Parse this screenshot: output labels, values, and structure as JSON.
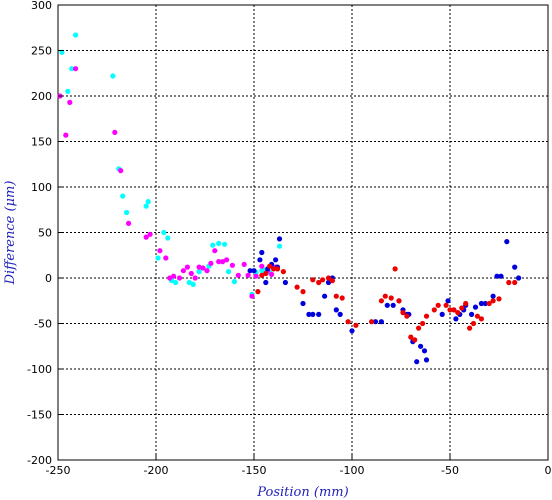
{
  "chart_data": {
    "type": "scatter",
    "xlabel": "Position (mm)",
    "ylabel": "Difference (μm)",
    "label_color": "#2222bb",
    "xlim": [
      -250,
      0
    ],
    "ylim": [
      -200,
      300
    ],
    "x_ticks": [
      "-250",
      "-200",
      "-150",
      "-100",
      "-50",
      "0"
    ],
    "y_ticks": [
      "300",
      "250",
      "200",
      "150",
      "100",
      "50",
      "0",
      "-50",
      "-100",
      "-150",
      "-200"
    ],
    "grid": true,
    "grid_style": "dashed",
    "series": [
      {
        "color": "#00ffff",
        "points": [
          [
            -248,
            248
          ],
          [
            -245,
            205
          ],
          [
            -243,
            230
          ],
          [
            -241,
            267
          ],
          [
            -222,
            222
          ],
          [
            -219,
            120
          ],
          [
            -217,
            90
          ],
          [
            -215,
            72
          ],
          [
            -205,
            79
          ],
          [
            -204,
            84
          ],
          [
            -199,
            22
          ],
          [
            -196,
            50
          ],
          [
            -194,
            44
          ],
          [
            -192,
            -3
          ],
          [
            -190,
            -5
          ],
          [
            -183,
            -5
          ],
          [
            -181,
            -7
          ],
          [
            -178,
            7
          ],
          [
            -173,
            13
          ],
          [
            -171,
            36
          ],
          [
            -168,
            38
          ],
          [
            -165,
            37
          ],
          [
            -163,
            7
          ],
          [
            -160,
            -4
          ],
          [
            -151,
            -18
          ],
          [
            -149,
            6
          ],
          [
            -146,
            8
          ],
          [
            -145,
            9
          ],
          [
            -142,
            6
          ],
          [
            -140,
            11
          ],
          [
            -137,
            35
          ]
        ]
      },
      {
        "color": "#ff00ff",
        "points": [
          [
            -249,
            200
          ],
          [
            -246,
            157
          ],
          [
            -244,
            193
          ],
          [
            -241,
            230
          ],
          [
            -221,
            160
          ],
          [
            -218,
            118
          ],
          [
            -214,
            60
          ],
          [
            -205,
            45
          ],
          [
            -203,
            48
          ],
          [
            -198,
            30
          ],
          [
            -195,
            22
          ],
          [
            -193,
            0
          ],
          [
            -191,
            2
          ],
          [
            -188,
            0
          ],
          [
            -186,
            8
          ],
          [
            -184,
            12
          ],
          [
            -182,
            5
          ],
          [
            -180,
            0
          ],
          [
            -178,
            12
          ],
          [
            -176,
            11
          ],
          [
            -174,
            8
          ],
          [
            -172,
            16
          ],
          [
            -170,
            30
          ],
          [
            -168,
            18
          ],
          [
            -166,
            18
          ],
          [
            -164,
            20
          ],
          [
            -161,
            14
          ],
          [
            -158,
            3
          ],
          [
            -155,
            15
          ],
          [
            -153,
            3
          ],
          [
            -151,
            -20
          ],
          [
            -149,
            2
          ],
          [
            -146,
            13
          ],
          [
            -143,
            8
          ],
          [
            -141,
            4
          ],
          [
            -139,
            12
          ]
        ]
      },
      {
        "color": "#0000dd",
        "points": [
          [
            -152,
            8
          ],
          [
            -150,
            8
          ],
          [
            -147,
            20
          ],
          [
            -146,
            28
          ],
          [
            -144,
            -5
          ],
          [
            -143,
            10
          ],
          [
            -141,
            15
          ],
          [
            -139,
            20
          ],
          [
            -138,
            12
          ],
          [
            -137,
            43
          ],
          [
            -134,
            -5
          ],
          [
            -125,
            -28
          ],
          [
            -122,
            -40
          ],
          [
            -120,
            -40
          ],
          [
            -117,
            -40
          ],
          [
            -114,
            -20
          ],
          [
            -112,
            -5
          ],
          [
            -110,
            0
          ],
          [
            -108,
            -35
          ],
          [
            -106,
            -40
          ],
          [
            -100,
            -58
          ],
          [
            -88,
            -48
          ],
          [
            -85,
            -48
          ],
          [
            -82,
            -30
          ],
          [
            -79,
            -30
          ],
          [
            -76,
            -25
          ],
          [
            -74,
            -35
          ],
          [
            -72,
            -40
          ],
          [
            -71,
            -40
          ],
          [
            -69,
            -70
          ],
          [
            -67,
            -92
          ],
          [
            -65,
            -75
          ],
          [
            -63,
            -80
          ],
          [
            -62,
            -90
          ],
          [
            -54,
            -40
          ],
          [
            -51,
            -25
          ],
          [
            -47,
            -45
          ],
          [
            -45,
            -40
          ],
          [
            -43,
            -35
          ],
          [
            -42,
            -30
          ],
          [
            -39,
            -40
          ],
          [
            -37,
            -32
          ],
          [
            -34,
            -28
          ],
          [
            -32,
            -28
          ],
          [
            -28,
            -20
          ],
          [
            -26,
            2
          ],
          [
            -24,
            2
          ],
          [
            -21,
            40
          ],
          [
            -17,
            12
          ],
          [
            -15,
            0
          ]
        ]
      },
      {
        "color": "#ee0000",
        "points": [
          [
            -148,
            -15
          ],
          [
            -146,
            3
          ],
          [
            -144,
            5
          ],
          [
            -142,
            13
          ],
          [
            -140,
            10
          ],
          [
            -138,
            10
          ],
          [
            -135,
            7
          ],
          [
            -128,
            -10
          ],
          [
            -125,
            -15
          ],
          [
            -120,
            -2
          ],
          [
            -117,
            -5
          ],
          [
            -115,
            -2
          ],
          [
            -112,
            0
          ],
          [
            -110,
            -3
          ],
          [
            -108,
            -20
          ],
          [
            -105,
            -22
          ],
          [
            -102,
            -48
          ],
          [
            -98,
            -52
          ],
          [
            -90,
            -48
          ],
          [
            -85,
            -25
          ],
          [
            -83,
            -20
          ],
          [
            -80,
            -22
          ],
          [
            -78,
            10
          ],
          [
            -76,
            -25
          ],
          [
            -74,
            -38
          ],
          [
            -72,
            -42
          ],
          [
            -70,
            -65
          ],
          [
            -68,
            -68
          ],
          [
            -66,
            -55
          ],
          [
            -64,
            -50
          ],
          [
            -62,
            -42
          ],
          [
            -58,
            -35
          ],
          [
            -56,
            -30
          ],
          [
            -52,
            -30
          ],
          [
            -50,
            -35
          ],
          [
            -48,
            -35
          ],
          [
            -46,
            -38
          ],
          [
            -44,
            -33
          ],
          [
            -42,
            -28
          ],
          [
            -40,
            -55
          ],
          [
            -38,
            -50
          ],
          [
            -36,
            -42
          ],
          [
            -34,
            -45
          ],
          [
            -30,
            -28
          ],
          [
            -28,
            -25
          ],
          [
            -25,
            -23
          ],
          [
            -20,
            -5
          ],
          [
            -17,
            -5
          ]
        ]
      }
    ]
  }
}
